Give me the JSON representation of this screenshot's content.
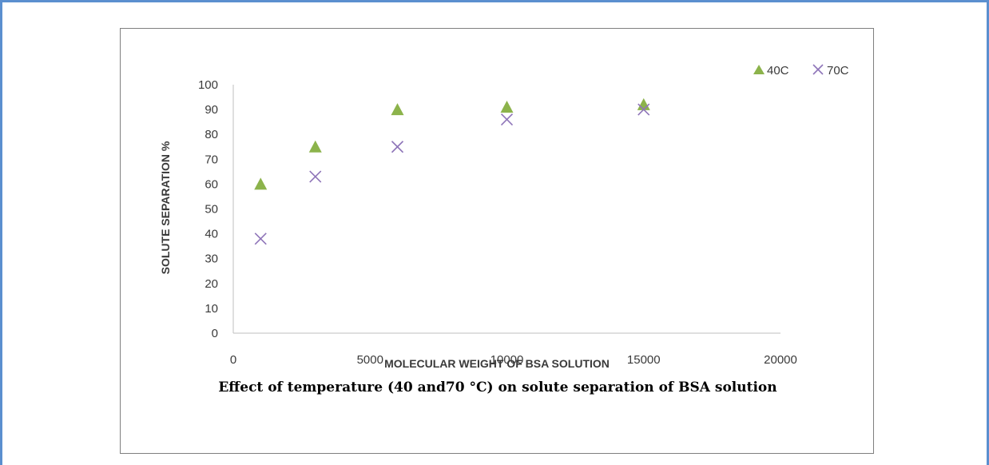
{
  "caption": "Effect of temperature (40 and70 °C) on solute separation of BSA solution",
  "colors": {
    "series_40": "#8cb34b",
    "series_70": "#8e74b8",
    "frame": "#5b8fcf"
  },
  "chart_data": {
    "type": "scatter",
    "xlabel": "MOLECULAR WEIGHT OF BSA SOLUTION",
    "ylabel": "SOLUTE SEPARATION %",
    "xlim": [
      0,
      20000
    ],
    "ylim": [
      0,
      100
    ],
    "xticks": [
      0,
      5000,
      10000,
      15000,
      20000
    ],
    "yticks": [
      0,
      10,
      20,
      30,
      40,
      50,
      60,
      70,
      80,
      90,
      100
    ],
    "grid": false,
    "legend_position": "top-right",
    "series": [
      {
        "name": "40C",
        "marker": "triangle",
        "x": [
          1000,
          3000,
          6000,
          10000,
          15000
        ],
        "y": [
          60,
          75,
          90,
          91,
          92
        ]
      },
      {
        "name": "70C",
        "marker": "x",
        "x": [
          1000,
          3000,
          6000,
          10000,
          15000
        ],
        "y": [
          38,
          63,
          75,
          86,
          90
        ]
      }
    ]
  }
}
